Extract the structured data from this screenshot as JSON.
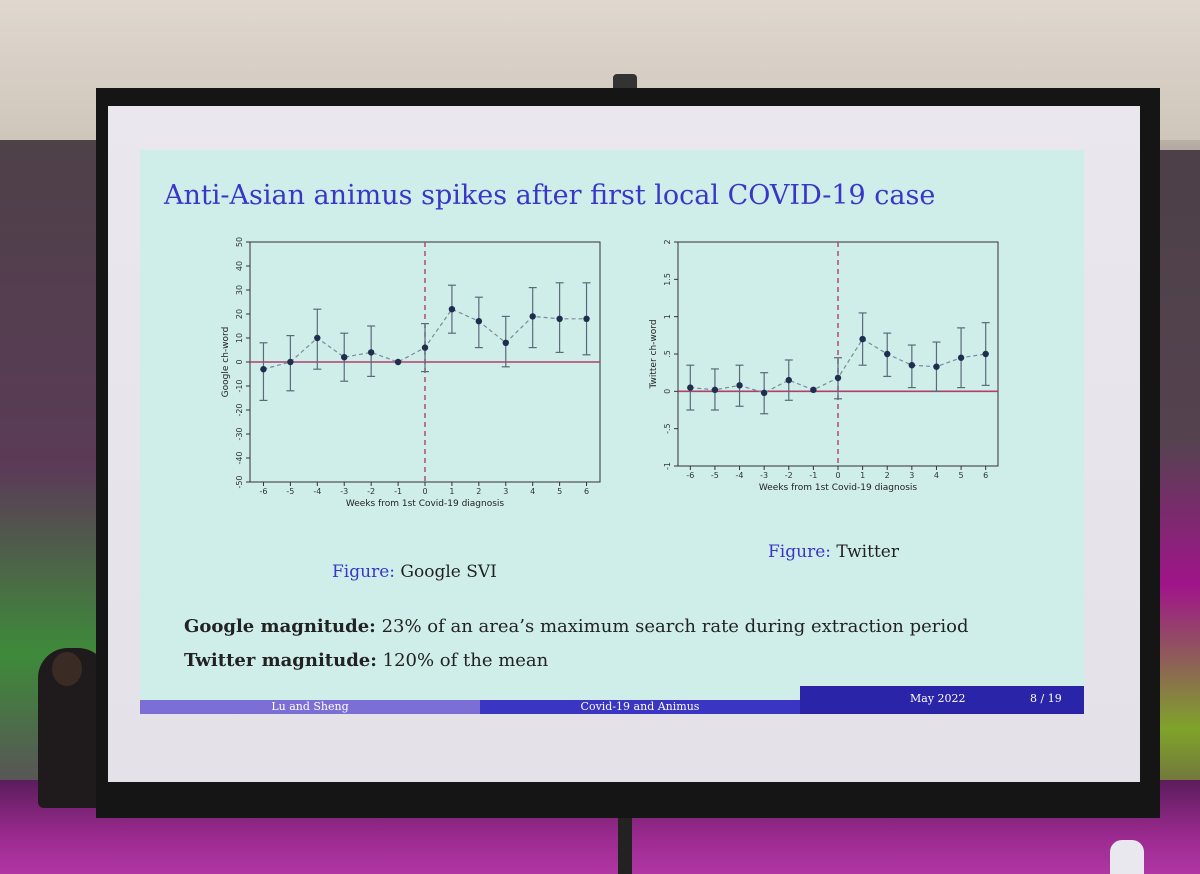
{
  "slide": {
    "title": "Anti-Asian animus spikes after first local COVID-19 case",
    "caption_left_prefix": "Figure:",
    "caption_left_text": " Google SVI",
    "caption_right_prefix": "Figure:",
    "caption_right_text": " Twitter",
    "note1_bold": "Google magnitude:",
    "note1_text": " 23% of an area’s maximum search rate during extraction period",
    "note2_bold": "Twitter magnitude:",
    "note2_text": " 120% of the mean",
    "footer_authors": "Lu and Sheng",
    "footer_talk": "Covid-19 and Animus",
    "footer_date": "May 2022",
    "footer_page": "8 / 19"
  },
  "chart_data": [
    {
      "type": "scatter",
      "title": "",
      "xlabel": "Weeks from 1st Covid-19 diagnosis",
      "ylabel": "Google ch-word",
      "xlim": [
        -6.5,
        6.5
      ],
      "ylim": [
        -50,
        50
      ],
      "xticks": [
        -6,
        -5,
        -4,
        -3,
        -2,
        -1,
        0,
        1,
        2,
        3,
        4,
        5,
        6
      ],
      "yticks": [
        -50,
        -40,
        -30,
        -20,
        -10,
        0,
        10,
        20,
        30,
        40,
        50
      ],
      "ytick_labels": [
        "-50",
        "-40",
        "-30",
        "-20",
        "-10",
        "0",
        "10",
        "20",
        "30",
        "40",
        "50"
      ],
      "reference_line_y": 0,
      "vertical_line_x": 0,
      "points": [
        {
          "x": -6,
          "y": -3,
          "lo": -16,
          "hi": 8
        },
        {
          "x": -5,
          "y": 0,
          "lo": -12,
          "hi": 11
        },
        {
          "x": -4,
          "y": 10,
          "lo": -3,
          "hi": 22
        },
        {
          "x": -3,
          "y": 2,
          "lo": -8,
          "hi": 12
        },
        {
          "x": -2,
          "y": 4,
          "lo": -6,
          "hi": 15
        },
        {
          "x": -1,
          "y": 0,
          "lo": 0,
          "hi": 0
        },
        {
          "x": 0,
          "y": 6,
          "lo": -4,
          "hi": 16
        },
        {
          "x": 1,
          "y": 22,
          "lo": 12,
          "hi": 32
        },
        {
          "x": 2,
          "y": 17,
          "lo": 6,
          "hi": 27
        },
        {
          "x": 3,
          "y": 8,
          "lo": -2,
          "hi": 19
        },
        {
          "x": 4,
          "y": 19,
          "lo": 6,
          "hi": 31
        },
        {
          "x": 5,
          "y": 18,
          "lo": 4,
          "hi": 33
        },
        {
          "x": 6,
          "y": 18,
          "lo": 3,
          "hi": 33
        }
      ]
    },
    {
      "type": "scatter",
      "title": "",
      "xlabel": "Weeks from 1st Covid-19 diagnosis",
      "ylabel": "Twitter ch-word",
      "xlim": [
        -6.5,
        6.5
      ],
      "ylim": [
        -1,
        2
      ],
      "xticks": [
        -6,
        -5,
        -4,
        -3,
        -2,
        -1,
        0,
        1,
        2,
        3,
        4,
        5,
        6
      ],
      "yticks": [
        -1,
        -0.5,
        0,
        0.5,
        1,
        1.5,
        2
      ],
      "ytick_labels": [
        "-1",
        "-.5",
        "0",
        ".5",
        "1",
        "1.5",
        "2"
      ],
      "reference_line_y": 0,
      "vertical_line_x": 0,
      "points": [
        {
          "x": -6,
          "y": 0.05,
          "lo": -0.25,
          "hi": 0.35
        },
        {
          "x": -5,
          "y": 0.02,
          "lo": -0.25,
          "hi": 0.3
        },
        {
          "x": -4,
          "y": 0.08,
          "lo": -0.2,
          "hi": 0.35
        },
        {
          "x": -3,
          "y": -0.02,
          "lo": -0.3,
          "hi": 0.25
        },
        {
          "x": -2,
          "y": 0.15,
          "lo": -0.12,
          "hi": 0.42
        },
        {
          "x": -1,
          "y": 0.02,
          "lo": 0.02,
          "hi": 0.02
        },
        {
          "x": 0,
          "y": 0.18,
          "lo": -0.1,
          "hi": 0.45
        },
        {
          "x": 1,
          "y": 0.7,
          "lo": 0.35,
          "hi": 1.05
        },
        {
          "x": 2,
          "y": 0.5,
          "lo": 0.2,
          "hi": 0.78
        },
        {
          "x": 3,
          "y": 0.35,
          "lo": 0.05,
          "hi": 0.62
        },
        {
          "x": 4,
          "y": 0.33,
          "lo": 0.0,
          "hi": 0.66
        },
        {
          "x": 5,
          "y": 0.45,
          "lo": 0.05,
          "hi": 0.85
        },
        {
          "x": 6,
          "y": 0.5,
          "lo": 0.08,
          "hi": 0.92
        }
      ]
    }
  ],
  "colors": {
    "title": "#3a36c8",
    "slide_bg": "#cfeee9",
    "reference_line": "#b0406a",
    "marker": "#1f2d4e",
    "connector": "#7a8a9a",
    "errorbar": "#5a6a7a"
  }
}
